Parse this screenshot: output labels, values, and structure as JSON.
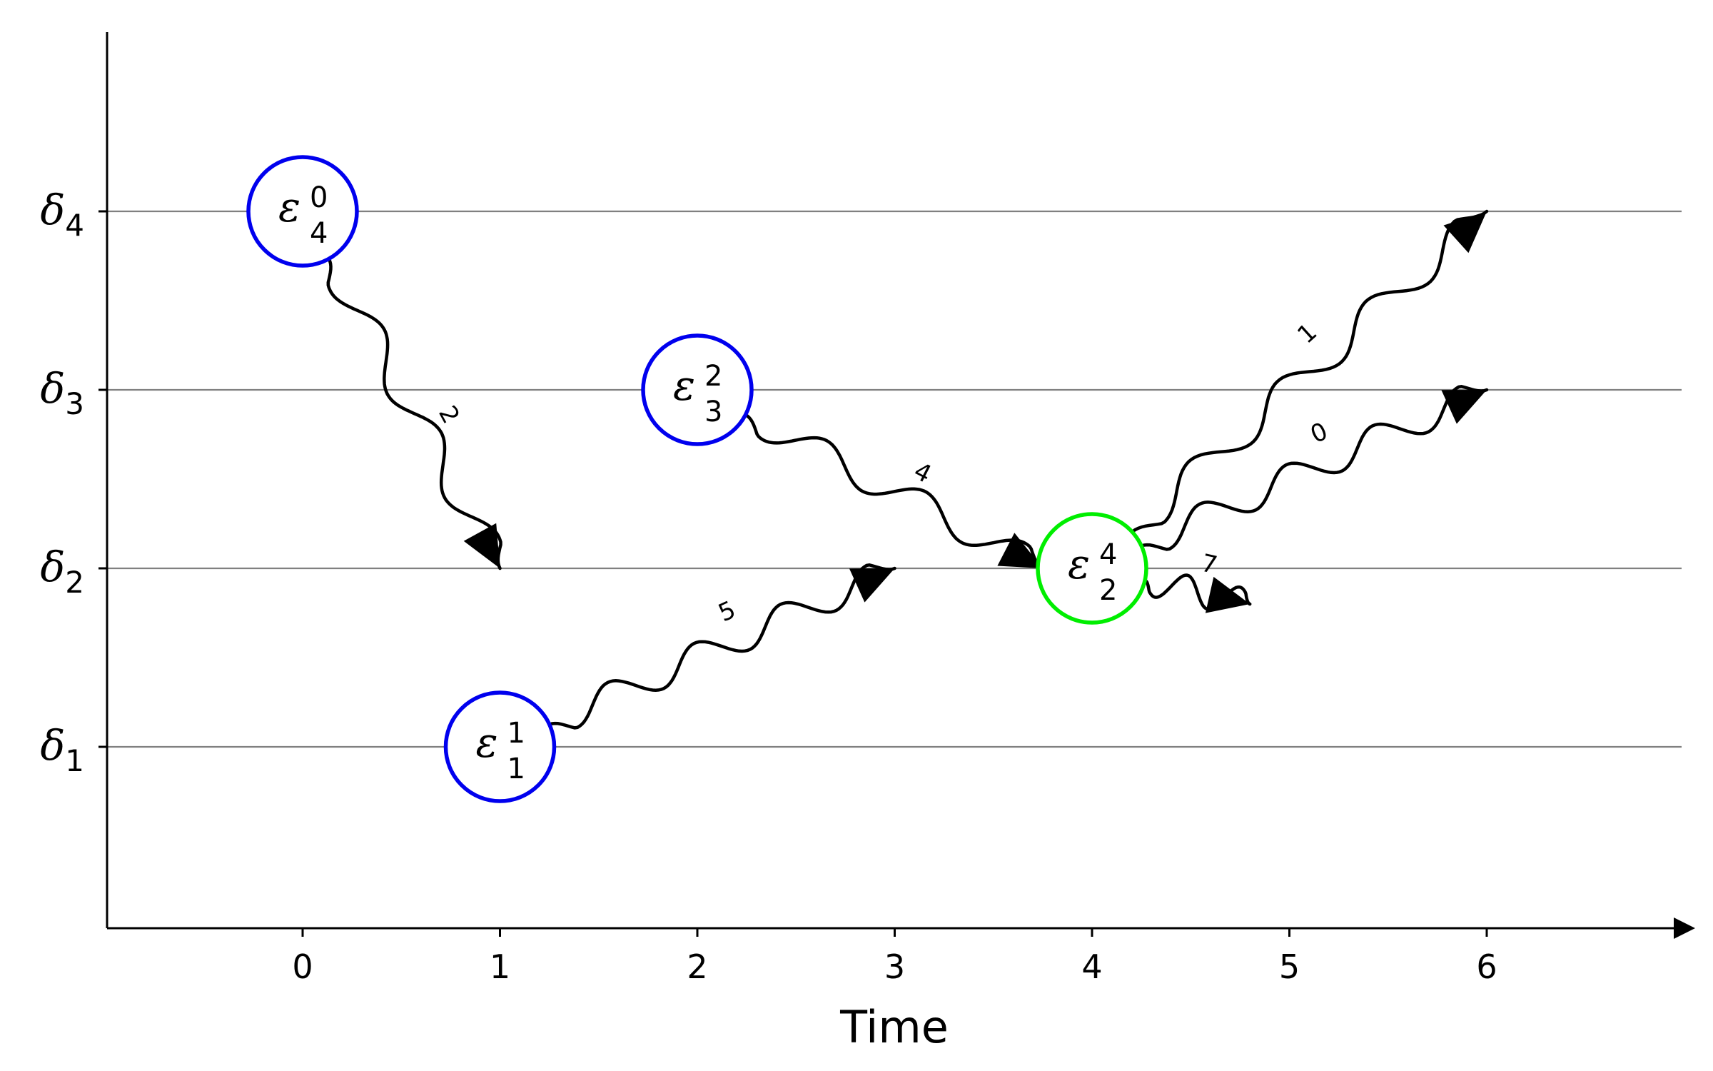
{
  "diagram": {
    "x_axis": {
      "label": "Time",
      "ticks": [
        "0",
        "1",
        "2",
        "3",
        "4",
        "5",
        "6"
      ]
    },
    "levels": [
      {
        "id": "d1",
        "symbol": "δ",
        "sub": "1"
      },
      {
        "id": "d2",
        "symbol": "δ",
        "sub": "2"
      },
      {
        "id": "d3",
        "symbol": "δ",
        "sub": "3"
      },
      {
        "id": "d4",
        "symbol": "δ",
        "sub": "4"
      }
    ],
    "nodes": [
      {
        "id": "e40",
        "symbol": "ε",
        "sub": "4",
        "sup": "0",
        "time": 0,
        "level": 4,
        "color": "#0000ee"
      },
      {
        "id": "e32",
        "symbol": "ε",
        "sub": "3",
        "sup": "2",
        "time": 2,
        "level": 3,
        "color": "#0000ee"
      },
      {
        "id": "e11",
        "symbol": "ε",
        "sub": "1",
        "sup": "1",
        "time": 1,
        "level": 1,
        "color": "#0000ee"
      },
      {
        "id": "e24",
        "symbol": "ε",
        "sub": "2",
        "sup": "4",
        "time": 4,
        "level": 2,
        "color": "#00ee00"
      }
    ],
    "edges": [
      {
        "from": "e40",
        "to_time": 1.0,
        "to_level": 2,
        "label": "2"
      },
      {
        "from": "e32",
        "to_time": 3.75,
        "to_level": 2,
        "label": "4"
      },
      {
        "from": "e11",
        "to_time": 3.0,
        "to_level": 2,
        "label": "5"
      },
      {
        "from": "e24",
        "to_time": 6.0,
        "to_level": 4,
        "label": "1"
      },
      {
        "from": "e24",
        "to_time": 6.0,
        "to_level": 3,
        "label": "0"
      },
      {
        "from": "e24",
        "to_time": 4.8,
        "to_level": 1.8,
        "label": "7"
      }
    ],
    "colors": {
      "level_line": "#808080",
      "edge": "#000000",
      "start_node": "#0000ee",
      "merge_node": "#00ee00"
    }
  }
}
